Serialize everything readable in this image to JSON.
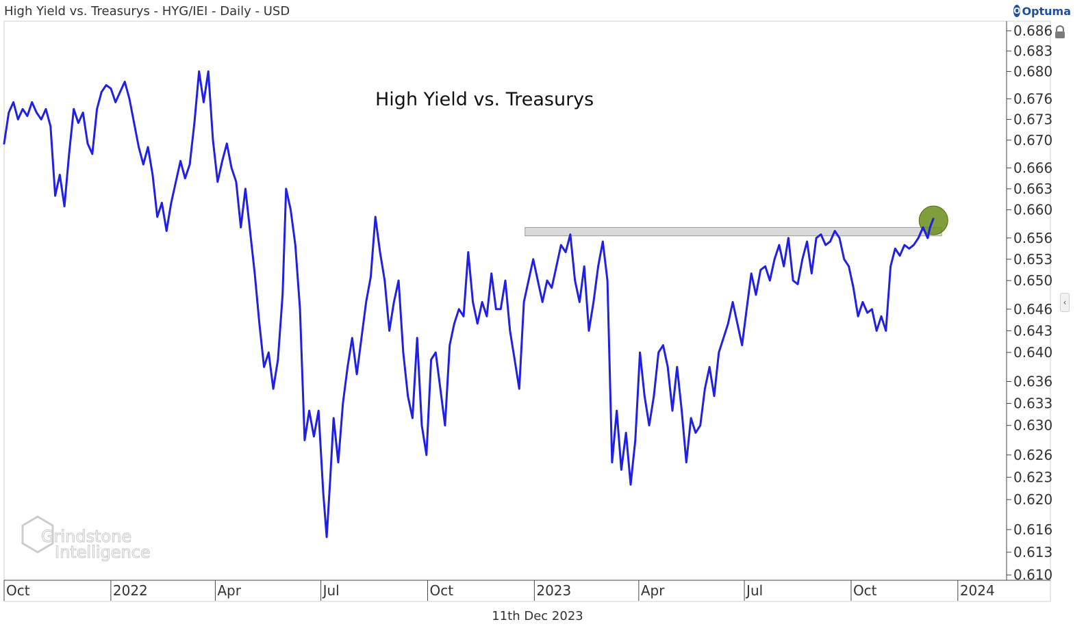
{
  "header": {
    "title": "High Yield vs. Treasurys - HYG/IEI - Daily - USD",
    "brand": "Optuma"
  },
  "annotation": "High Yield vs. Treasurys",
  "watermark": {
    "line1": "Grindstone",
    "line2": "Intelligence"
  },
  "footer": {
    "date": "11th Dec 2023"
  },
  "colors": {
    "line": "#1f1fe6",
    "resistance_band": "#d9d9d9",
    "marker": "#6a8d1a",
    "axis": "#444444"
  },
  "icons": {
    "lock": "lock-icon",
    "toggle": "chevron-left-icon",
    "brand": "optuma-logo-icon"
  },
  "chart_data": {
    "type": "line",
    "title": "High Yield vs. Treasurys - HYG/IEI - Daily - USD",
    "xlabel": "",
    "ylabel": "",
    "x_range": [
      "2021-10-01",
      "2024-02-12"
    ],
    "ylim": [
      0.61,
      0.6865
    ],
    "y_ticks": [
      "0.686",
      "0.683",
      "0.680",
      "0.676",
      "0.673",
      "0.670",
      "0.666",
      "0.663",
      "0.660",
      "0.656",
      "0.653",
      "0.650",
      "0.646",
      "0.643",
      "0.640",
      "0.636",
      "0.633",
      "0.630",
      "0.626",
      "0.623",
      "0.620",
      "0.616",
      "0.613",
      "0.610"
    ],
    "x_ticks": [
      {
        "date": "2021-10-01",
        "label": "Oct"
      },
      {
        "date": "2022-01-01",
        "label": "2022"
      },
      {
        "date": "2022-04-01",
        "label": "Apr"
      },
      {
        "date": "2022-07-01",
        "label": "Jul"
      },
      {
        "date": "2022-10-01",
        "label": "Oct"
      },
      {
        "date": "2023-01-01",
        "label": "2023"
      },
      {
        "date": "2023-04-01",
        "label": "Apr"
      },
      {
        "date": "2023-07-01",
        "label": "Jul"
      },
      {
        "date": "2023-10-01",
        "label": "Oct"
      },
      {
        "date": "2024-01-01",
        "label": "2024"
      }
    ],
    "resistance_zone": {
      "x_start": "2022-12-24",
      "x_end": "2023-12-18",
      "y_low": 0.6565,
      "y_high": 0.6573
    },
    "highlight_point": {
      "x": "2023-12-11",
      "y": 0.6585
    },
    "series": [
      {
        "values": [
          [
            "2021-10-01",
            0.6695
          ],
          [
            "2021-10-05",
            0.674
          ],
          [
            "2021-10-09",
            0.6755
          ],
          [
            "2021-10-13",
            0.673
          ],
          [
            "2021-10-17",
            0.6745
          ],
          [
            "2021-10-21",
            0.6735
          ],
          [
            "2021-10-25",
            0.6755
          ],
          [
            "2021-10-29",
            0.674
          ],
          [
            "2021-11-02",
            0.673
          ],
          [
            "2021-11-06",
            0.6745
          ],
          [
            "2021-11-10",
            0.672
          ],
          [
            "2021-11-14",
            0.662
          ],
          [
            "2021-11-18",
            0.665
          ],
          [
            "2021-11-22",
            0.6605
          ],
          [
            "2021-11-26",
            0.668
          ],
          [
            "2021-11-30",
            0.6745
          ],
          [
            "2021-12-04",
            0.6725
          ],
          [
            "2021-12-08",
            0.674
          ],
          [
            "2021-12-12",
            0.6695
          ],
          [
            "2021-12-16",
            0.668
          ],
          [
            "2021-12-20",
            0.6745
          ],
          [
            "2021-12-24",
            0.677
          ],
          [
            "2021-12-28",
            0.678
          ],
          [
            "2022-01-01",
            0.6775
          ],
          [
            "2022-01-05",
            0.6755
          ],
          [
            "2022-01-09",
            0.677
          ],
          [
            "2022-01-13",
            0.6785
          ],
          [
            "2022-01-17",
            0.676
          ],
          [
            "2022-01-21",
            0.6725
          ],
          [
            "2022-01-25",
            0.669
          ],
          [
            "2022-01-29",
            0.6665
          ],
          [
            "2022-02-02",
            0.669
          ],
          [
            "2022-02-06",
            0.665
          ],
          [
            "2022-02-10",
            0.659
          ],
          [
            "2022-02-14",
            0.661
          ],
          [
            "2022-02-18",
            0.657
          ],
          [
            "2022-02-22",
            0.661
          ],
          [
            "2022-02-26",
            0.664
          ],
          [
            "2022-03-02",
            0.667
          ],
          [
            "2022-03-06",
            0.6645
          ],
          [
            "2022-03-10",
            0.6665
          ],
          [
            "2022-03-14",
            0.6725
          ],
          [
            "2022-03-18",
            0.68
          ],
          [
            "2022-03-22",
            0.6755
          ],
          [
            "2022-03-26",
            0.68
          ],
          [
            "2022-03-30",
            0.67
          ],
          [
            "2022-04-03",
            0.664
          ],
          [
            "2022-04-07",
            0.667
          ],
          [
            "2022-04-11",
            0.6695
          ],
          [
            "2022-04-15",
            0.666
          ],
          [
            "2022-04-19",
            0.664
          ],
          [
            "2022-04-23",
            0.6575
          ],
          [
            "2022-04-27",
            0.663
          ],
          [
            "2022-05-01",
            0.657
          ],
          [
            "2022-05-05",
            0.651
          ],
          [
            "2022-05-09",
            0.644
          ],
          [
            "2022-05-13",
            0.638
          ],
          [
            "2022-05-17",
            0.64
          ],
          [
            "2022-05-21",
            0.635
          ],
          [
            "2022-05-25",
            0.639
          ],
          [
            "2022-05-29",
            0.648
          ],
          [
            "2022-06-01",
            0.663
          ],
          [
            "2022-06-05",
            0.66
          ],
          [
            "2022-06-09",
            0.655
          ],
          [
            "2022-06-13",
            0.646
          ],
          [
            "2022-06-17",
            0.628
          ],
          [
            "2022-06-21",
            0.632
          ],
          [
            "2022-06-25",
            0.6285
          ],
          [
            "2022-06-29",
            0.632
          ],
          [
            "2022-07-03",
            0.621
          ],
          [
            "2022-07-06",
            0.615
          ],
          [
            "2022-07-09",
            0.6225
          ],
          [
            "2022-07-12",
            0.631
          ],
          [
            "2022-07-16",
            0.625
          ],
          [
            "2022-07-20",
            0.633
          ],
          [
            "2022-07-24",
            0.638
          ],
          [
            "2022-07-28",
            0.642
          ],
          [
            "2022-08-01",
            0.637
          ],
          [
            "2022-08-05",
            0.642
          ],
          [
            "2022-08-09",
            0.647
          ],
          [
            "2022-08-13",
            0.6505
          ],
          [
            "2022-08-17",
            0.659
          ],
          [
            "2022-08-21",
            0.654
          ],
          [
            "2022-08-25",
            0.65
          ],
          [
            "2022-08-29",
            0.643
          ],
          [
            "2022-09-02",
            0.647
          ],
          [
            "2022-09-06",
            0.65
          ],
          [
            "2022-09-10",
            0.64
          ],
          [
            "2022-09-14",
            0.634
          ],
          [
            "2022-09-18",
            0.631
          ],
          [
            "2022-09-22",
            0.642
          ],
          [
            "2022-09-26",
            0.63
          ],
          [
            "2022-09-30",
            0.626
          ],
          [
            "2022-10-04",
            0.639
          ],
          [
            "2022-10-08",
            0.64
          ],
          [
            "2022-10-12",
            0.635
          ],
          [
            "2022-10-16",
            0.63
          ],
          [
            "2022-10-20",
            0.641
          ],
          [
            "2022-10-24",
            0.644
          ],
          [
            "2022-10-28",
            0.646
          ],
          [
            "2022-11-01",
            0.645
          ],
          [
            "2022-11-05",
            0.654
          ],
          [
            "2022-11-09",
            0.647
          ],
          [
            "2022-11-13",
            0.644
          ],
          [
            "2022-11-17",
            0.647
          ],
          [
            "2022-11-21",
            0.645
          ],
          [
            "2022-11-25",
            0.651
          ],
          [
            "2022-11-29",
            0.646
          ],
          [
            "2022-12-03",
            0.646
          ],
          [
            "2022-12-07",
            0.65
          ],
          [
            "2022-12-11",
            0.643
          ],
          [
            "2022-12-15",
            0.639
          ],
          [
            "2022-12-19",
            0.635
          ],
          [
            "2022-12-23",
            0.647
          ],
          [
            "2022-12-27",
            0.65
          ],
          [
            "2022-12-31",
            0.653
          ],
          [
            "2023-01-04",
            0.65
          ],
          [
            "2023-01-08",
            0.647
          ],
          [
            "2023-01-12",
            0.65
          ],
          [
            "2023-01-16",
            0.649
          ],
          [
            "2023-01-20",
            0.652
          ],
          [
            "2023-01-24",
            0.655
          ],
          [
            "2023-01-28",
            0.654
          ],
          [
            "2023-02-01",
            0.6565
          ],
          [
            "2023-02-05",
            0.65
          ],
          [
            "2023-02-09",
            0.647
          ],
          [
            "2023-02-13",
            0.652
          ],
          [
            "2023-02-17",
            0.643
          ],
          [
            "2023-02-21",
            0.647
          ],
          [
            "2023-02-25",
            0.652
          ],
          [
            "2023-03-01",
            0.6555
          ],
          [
            "2023-03-05",
            0.65
          ],
          [
            "2023-03-09",
            0.625
          ],
          [
            "2023-03-13",
            0.632
          ],
          [
            "2023-03-17",
            0.624
          ],
          [
            "2023-03-21",
            0.629
          ],
          [
            "2023-03-25",
            0.622
          ],
          [
            "2023-03-29",
            0.628
          ],
          [
            "2023-04-02",
            0.64
          ],
          [
            "2023-04-06",
            0.634
          ],
          [
            "2023-04-10",
            0.63
          ],
          [
            "2023-04-14",
            0.634
          ],
          [
            "2023-04-18",
            0.64
          ],
          [
            "2023-04-22",
            0.641
          ],
          [
            "2023-04-26",
            0.638
          ],
          [
            "2023-04-30",
            0.632
          ],
          [
            "2023-05-04",
            0.638
          ],
          [
            "2023-05-08",
            0.632
          ],
          [
            "2023-05-12",
            0.625
          ],
          [
            "2023-05-16",
            0.631
          ],
          [
            "2023-05-20",
            0.629
          ],
          [
            "2023-05-24",
            0.63
          ],
          [
            "2023-05-28",
            0.635
          ],
          [
            "2023-06-01",
            0.638
          ],
          [
            "2023-06-05",
            0.634
          ],
          [
            "2023-06-09",
            0.64
          ],
          [
            "2023-06-13",
            0.642
          ],
          [
            "2023-06-17",
            0.644
          ],
          [
            "2023-06-21",
            0.647
          ],
          [
            "2023-06-25",
            0.644
          ],
          [
            "2023-06-29",
            0.641
          ],
          [
            "2023-07-03",
            0.646
          ],
          [
            "2023-07-07",
            0.651
          ],
          [
            "2023-07-11",
            0.648
          ],
          [
            "2023-07-15",
            0.6515
          ],
          [
            "2023-07-19",
            0.652
          ],
          [
            "2023-07-23",
            0.65
          ],
          [
            "2023-07-27",
            0.653
          ],
          [
            "2023-07-31",
            0.655
          ],
          [
            "2023-08-04",
            0.652
          ],
          [
            "2023-08-08",
            0.656
          ],
          [
            "2023-08-12",
            0.65
          ],
          [
            "2023-08-16",
            0.6495
          ],
          [
            "2023-08-20",
            0.653
          ],
          [
            "2023-08-24",
            0.6555
          ],
          [
            "2023-08-28",
            0.651
          ],
          [
            "2023-09-01",
            0.656
          ],
          [
            "2023-09-05",
            0.6565
          ],
          [
            "2023-09-09",
            0.655
          ],
          [
            "2023-09-13",
            0.6555
          ],
          [
            "2023-09-17",
            0.657
          ],
          [
            "2023-09-21",
            0.656
          ],
          [
            "2023-09-25",
            0.653
          ],
          [
            "2023-09-29",
            0.652
          ],
          [
            "2023-10-03",
            0.649
          ],
          [
            "2023-10-07",
            0.645
          ],
          [
            "2023-10-11",
            0.647
          ],
          [
            "2023-10-15",
            0.6455
          ],
          [
            "2023-10-19",
            0.646
          ],
          [
            "2023-10-23",
            0.643
          ],
          [
            "2023-10-27",
            0.645
          ],
          [
            "2023-10-31",
            0.643
          ],
          [
            "2023-11-04",
            0.652
          ],
          [
            "2023-11-08",
            0.6545
          ],
          [
            "2023-11-12",
            0.6535
          ],
          [
            "2023-11-16",
            0.655
          ],
          [
            "2023-11-20",
            0.6545
          ],
          [
            "2023-11-24",
            0.655
          ],
          [
            "2023-11-28",
            0.656
          ],
          [
            "2023-12-02",
            0.6575
          ],
          [
            "2023-12-06",
            0.656
          ],
          [
            "2023-12-08",
            0.6575
          ],
          [
            "2023-12-11",
            0.6588
          ]
        ]
      }
    ]
  }
}
